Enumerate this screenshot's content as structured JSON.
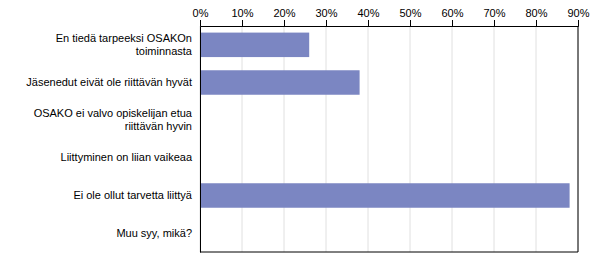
{
  "chart_data": {
    "type": "bar",
    "orientation": "horizontal",
    "categories": [
      "Muu syy, mikä?",
      "Ei ole ollut tarvetta liittyä",
      "Liittyminen on liian vaikeaa",
      "OSAKO ei valvo opiskelijan etua\nriittävän hyvin",
      "Jäsenedut eivät ole riittävän hyvät",
      "En tiedä tarpeeksi OSAKOn\ntoiminnasta"
    ],
    "values": [
      0,
      88,
      0,
      0,
      38,
      26
    ],
    "color": "#7B86C2",
    "xlim": [
      0,
      90
    ],
    "xticks": [
      {
        "value": 0,
        "label": "0%"
      },
      {
        "value": 10,
        "label": "10%"
      },
      {
        "value": 20,
        "label": "20%"
      },
      {
        "value": 30,
        "label": "30%"
      },
      {
        "value": 40,
        "label": "40%"
      },
      {
        "value": 50,
        "label": "50%"
      },
      {
        "value": 60,
        "label": "60%"
      },
      {
        "value": 70,
        "label": "70%"
      },
      {
        "value": 80,
        "label": "80%"
      },
      {
        "value": 90,
        "label": "90%"
      }
    ],
    "grid": true
  }
}
